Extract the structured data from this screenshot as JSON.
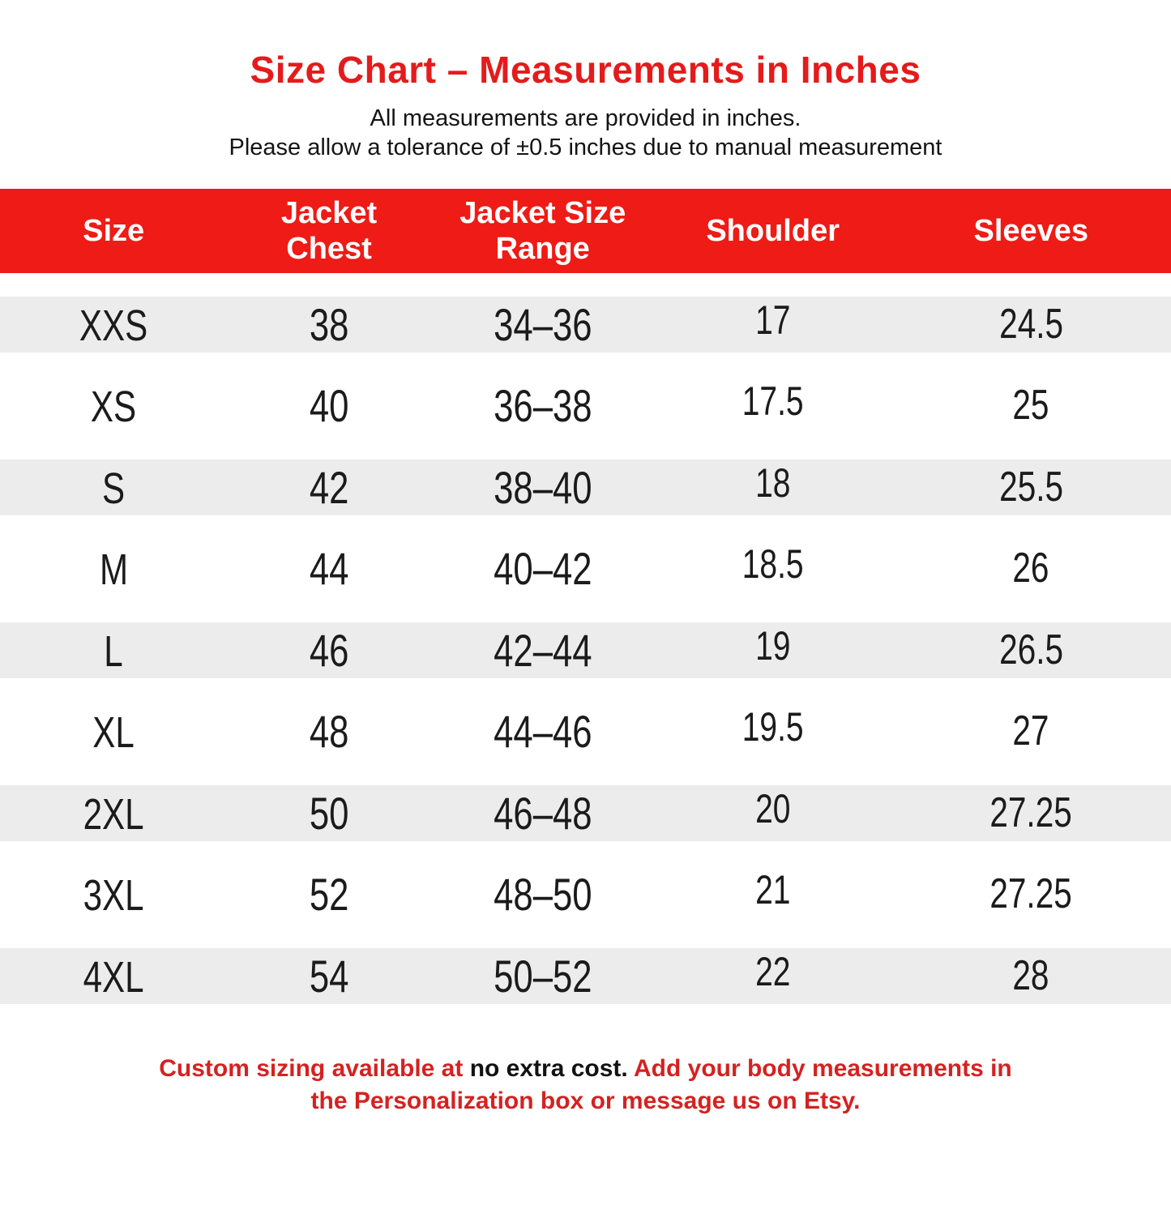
{
  "header": {
    "title": "Size Chart – Measurements in Inches",
    "subtitle_line1": "All measurements are provided in inches.",
    "subtitle_line2": "Please allow a tolerance of ±0.5 inches due to manual measurement"
  },
  "colors": {
    "title_red": "#e41b1c",
    "header_band_red": "#ee1b16",
    "row_stripe_gray": "#ececec",
    "footer_red": "#d42221",
    "header_text": "#ffffff",
    "body_text": "#1b1b1b"
  },
  "table": {
    "header_lines": [
      [
        "Size"
      ],
      [
        "Jacket",
        "Chest"
      ],
      [
        "Jacket Size",
        "Range"
      ],
      [
        "Shoulder"
      ],
      [
        "Sleeves"
      ]
    ]
  },
  "chart_data": {
    "type": "table",
    "title": "Size Chart – Measurements in Inches",
    "columns": [
      "Size",
      "Jacket Chest",
      "Jacket Size Range",
      "Shoulder",
      "Sleeves"
    ],
    "rows": [
      [
        "XXS",
        "38",
        "34–36",
        "17",
        "24.5"
      ],
      [
        "XS",
        "40",
        "36–38",
        "17.5",
        "25"
      ],
      [
        "S",
        "42",
        "38–40",
        "18",
        "25.5"
      ],
      [
        "M",
        "44",
        "40–42",
        "18.5",
        "26"
      ],
      [
        "L",
        "46",
        "42–44",
        "19",
        "26.5"
      ],
      [
        "XL",
        "48",
        "44–46",
        "19.5",
        "27"
      ],
      [
        "2XL",
        "50",
        "46–48",
        "20",
        "27.25"
      ],
      [
        "3XL",
        "52",
        "48–50",
        "21",
        "27.25"
      ],
      [
        "4XL",
        "54",
        "50–52",
        "22",
        "28"
      ]
    ]
  },
  "footer": {
    "segment1_red": "Custom sizing available at ",
    "segment2_black": "no extra cost.",
    "segment3_red": "Add your body measurements in the Personalization box or message us on Etsy."
  }
}
